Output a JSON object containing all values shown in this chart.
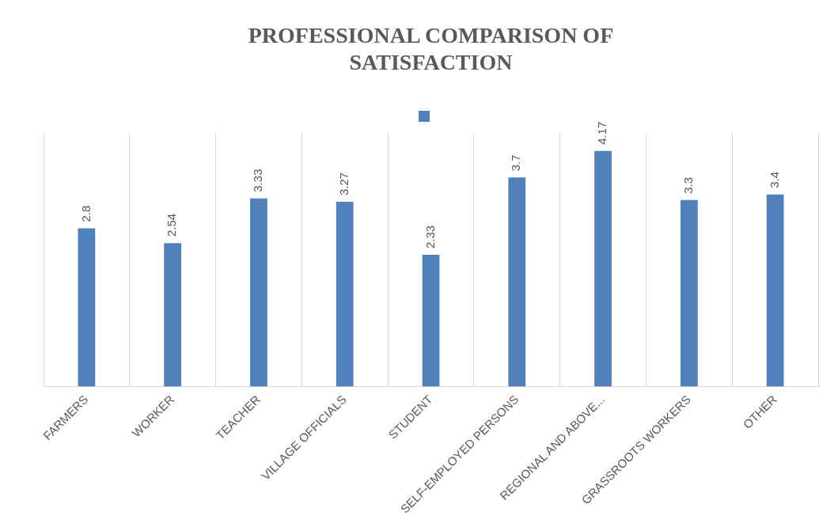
{
  "chart_data": {
    "type": "bar",
    "title": "PROFESSIONAL COMPARISON OF SATISFACTION",
    "categories": [
      "FARMERS",
      "WORKER",
      "TEACHER",
      "VILLAGE OFFICIALS",
      "STUDENT",
      "SELF-EMPLOYED PERSONS",
      "REGIONAL AND ABOVE...",
      "GRASSROOTS WORKERS",
      "OTHER"
    ],
    "values": [
      2.8,
      2.54,
      3.33,
      3.27,
      2.33,
      3.7,
      4.17,
      3.3,
      3.4
    ],
    "color": "#4f81bd",
    "data_labels": true,
    "grid": "x"
  }
}
